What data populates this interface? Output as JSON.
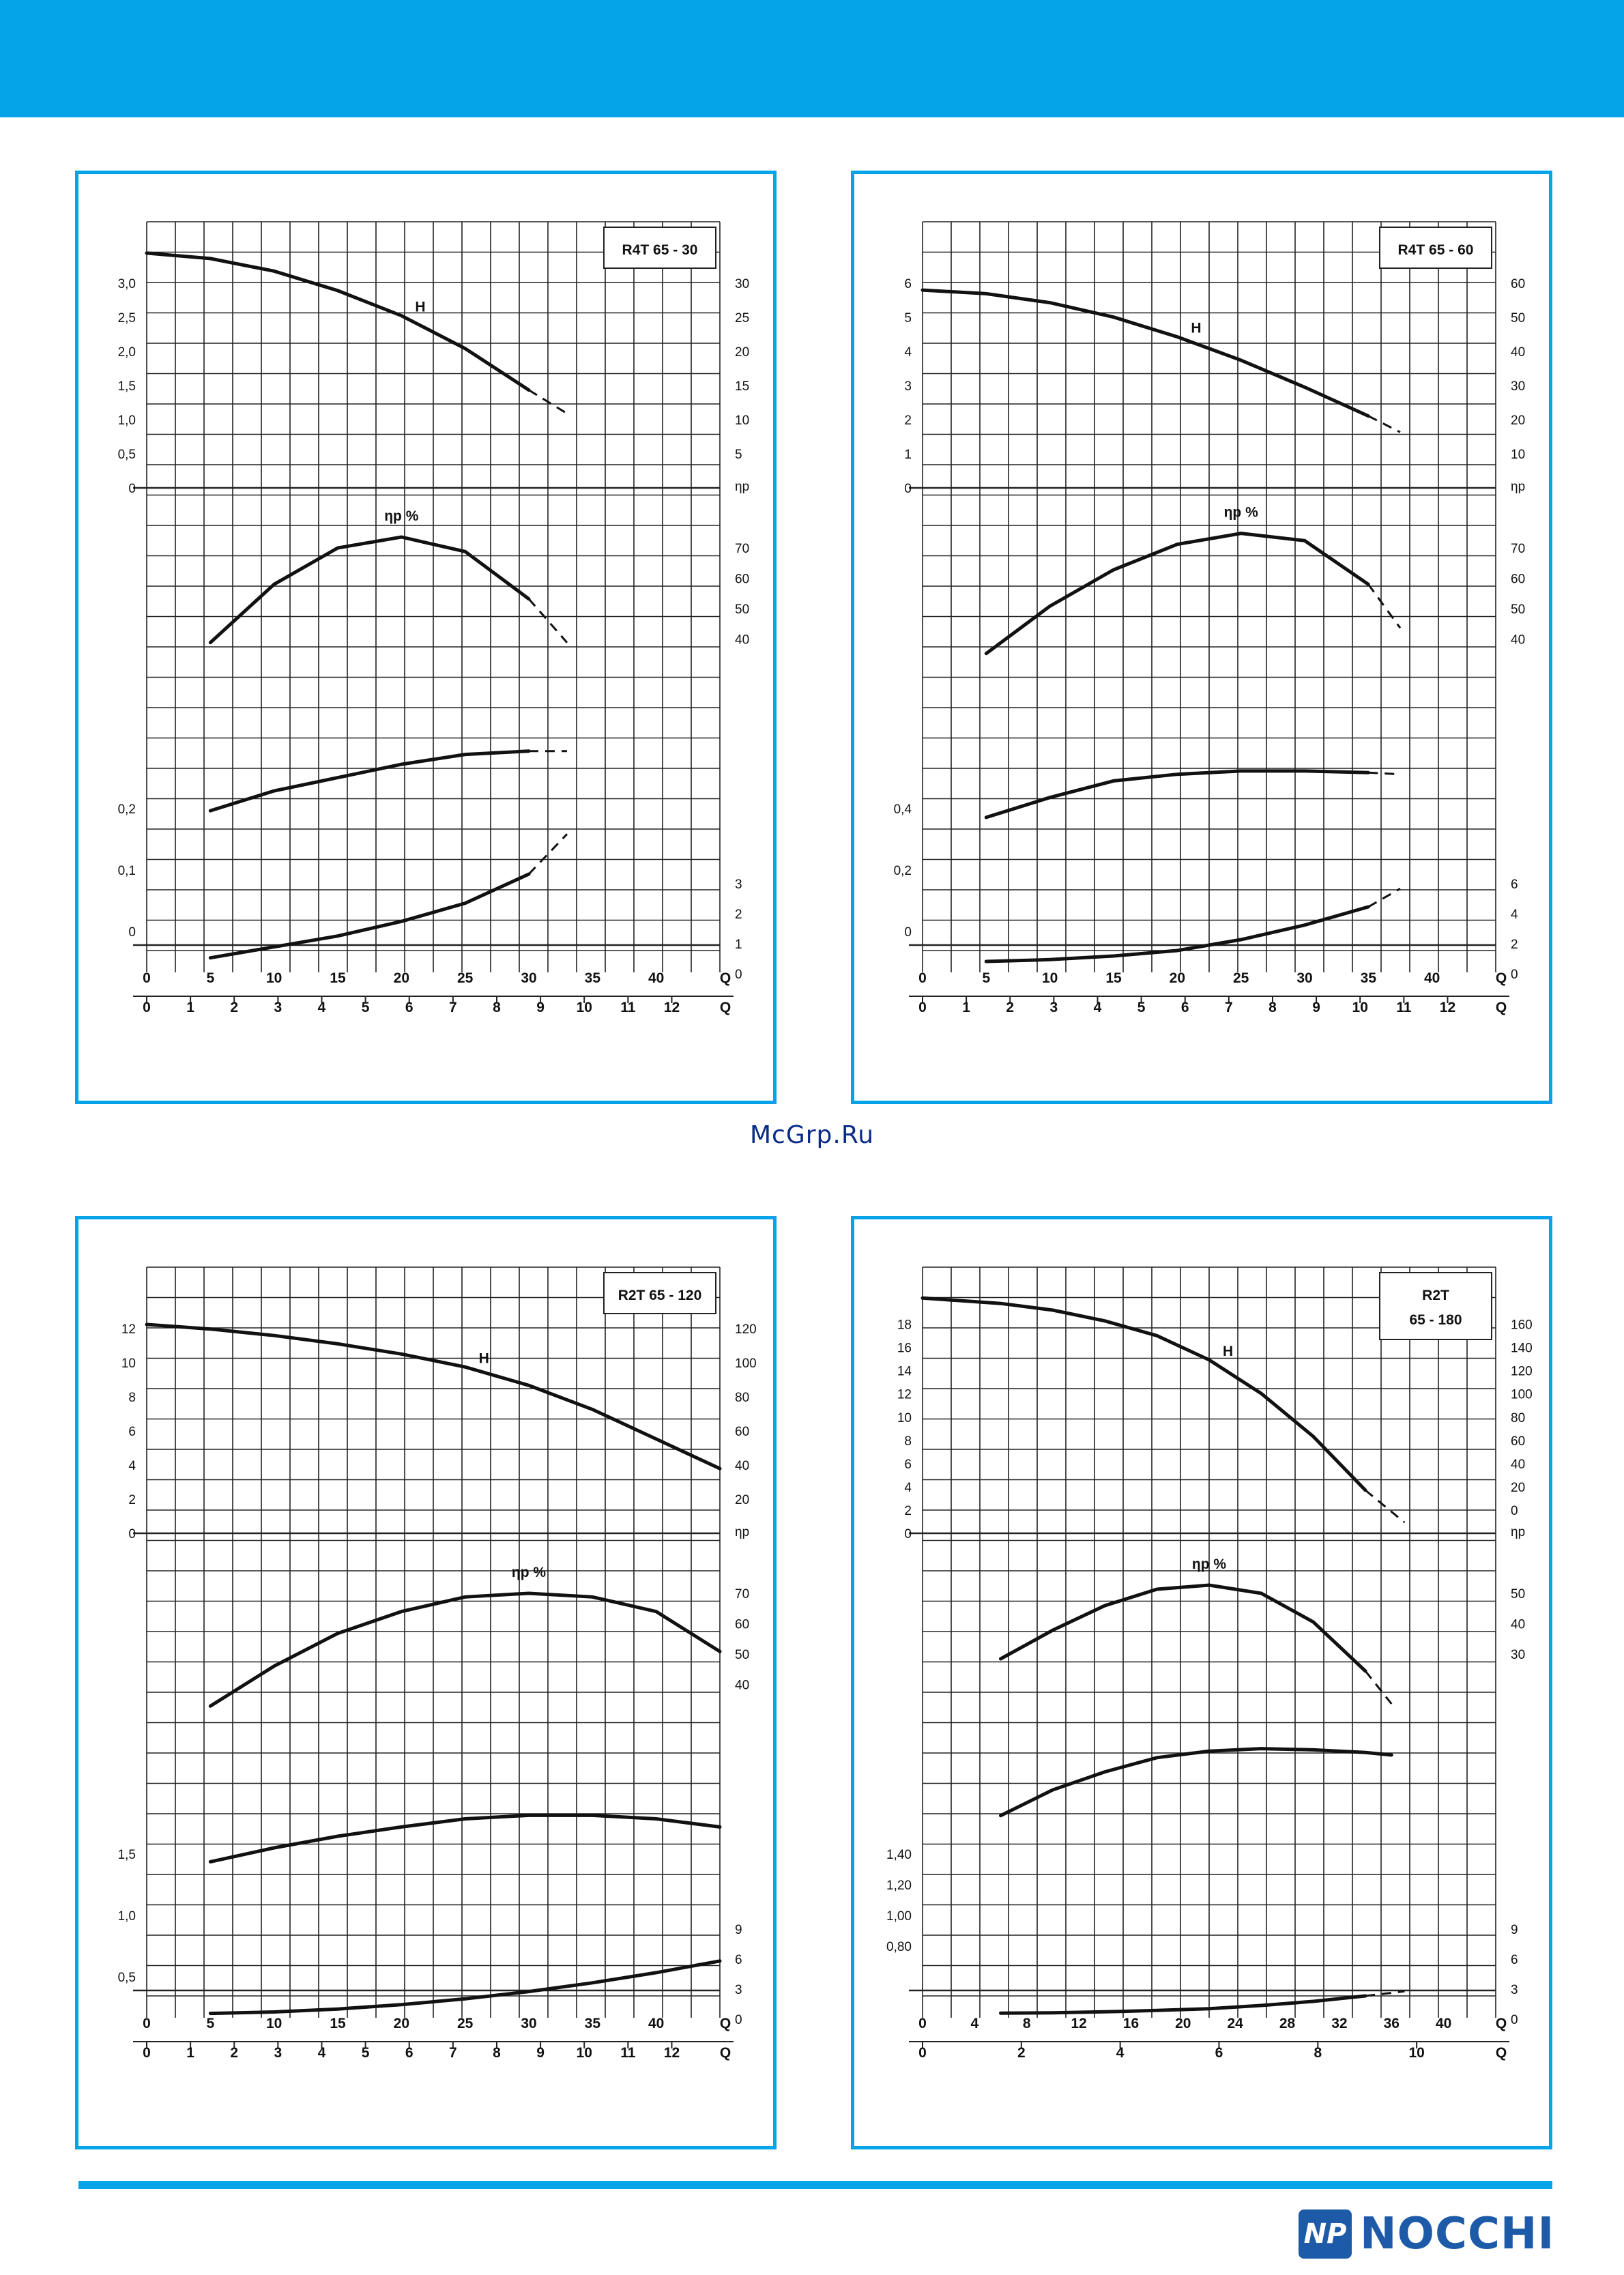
{
  "page": {
    "brand": "NOCCHI",
    "logo_mark": "NP",
    "watermark": "McGrp.Ru",
    "colors": {
      "accent": "#05a3e8",
      "logo_text": "#1d5aa8",
      "curve": "#111111",
      "grid": "#222222"
    }
  },
  "chart_data": [
    {
      "type": "line",
      "title": "R4T 65 - 30",
      "x_top": {
        "ticks": [
          0,
          5,
          10,
          15,
          20,
          25,
          30,
          35,
          40
        ],
        "label": "Q",
        "range": [
          0,
          45
        ]
      },
      "x_bottom": {
        "ticks": [
          0,
          1,
          2,
          3,
          4,
          5,
          6,
          7,
          8,
          9,
          10,
          11,
          12
        ],
        "label": "Q"
      },
      "H": {
        "left_ticks": [
          "3,0",
          "2,5",
          "2,0",
          "1,5",
          "1,0",
          "0,5",
          "0"
        ],
        "right_ticks": [
          "30",
          "25",
          "20",
          "15",
          "10",
          "5"
        ],
        "range": [
          0,
          3.4
        ],
        "label": "H",
        "x": [
          0,
          5,
          10,
          15,
          20,
          25,
          30,
          33
        ],
        "y": [
          3.0,
          2.93,
          2.77,
          2.52,
          2.2,
          1.78,
          1.25,
          0.95
        ],
        "dashed_from": 30
      },
      "eta": {
        "label": "ηp %",
        "right_ticks": [
          "70",
          "60",
          "50",
          "40"
        ],
        "range": [
          30,
          75
        ],
        "x": [
          5,
          10,
          15,
          20,
          25,
          30,
          33
        ],
        "y": [
          40,
          56,
          66,
          69,
          65,
          52,
          40
        ],
        "dashed_from": 30
      },
      "P": {
        "left_ticks": [
          "0,2",
          "0,1",
          "0"
        ],
        "range": [
          0,
          0.35
        ],
        "x": [
          5,
          10,
          15,
          20,
          25,
          30,
          33
        ],
        "y": [
          0.11,
          0.14,
          0.16,
          0.18,
          0.195,
          0.2,
          0.2
        ],
        "dashed_from": 30
      },
      "NPSH": {
        "right_ticks": [
          "3",
          "2",
          "1",
          "0"
        ],
        "range": [
          0,
          3
        ],
        "x": [
          5,
          10,
          15,
          20,
          25,
          30,
          33
        ],
        "y": [
          0.4,
          0.7,
          1.0,
          1.4,
          1.9,
          2.7,
          3.8
        ],
        "dashed_from": 30
      }
    },
    {
      "type": "line",
      "title": "R4T 65 - 60",
      "x_top": {
        "ticks": [
          0,
          5,
          10,
          15,
          20,
          25,
          30,
          35,
          40
        ],
        "label": "Q",
        "range": [
          0,
          45
        ]
      },
      "x_bottom": {
        "ticks": [
          0,
          1,
          2,
          3,
          4,
          5,
          6,
          7,
          8,
          9,
          10,
          11,
          12
        ],
        "label": "Q"
      },
      "H": {
        "left_ticks": [
          "6",
          "5",
          "4",
          "3",
          "2",
          "1",
          "0"
        ],
        "right_ticks": [
          "60",
          "50",
          "40",
          "30",
          "20",
          "10"
        ],
        "range": [
          0,
          7.4
        ],
        "label": "H",
        "x": [
          0,
          5,
          10,
          15,
          20,
          25,
          30,
          35,
          37.5
        ],
        "y": [
          5.5,
          5.4,
          5.15,
          4.75,
          4.2,
          3.55,
          2.8,
          2.0,
          1.55
        ],
        "dashed_from": 35
      },
      "eta": {
        "label": "ηp %",
        "right_ticks": [
          "70",
          "60",
          "50",
          "40"
        ],
        "range": [
          30,
          75
        ],
        "x": [
          5,
          10,
          15,
          20,
          25,
          30,
          35,
          37.5
        ],
        "y": [
          37,
          50,
          60,
          67,
          70,
          68,
          56,
          44
        ],
        "dashed_from": 35
      },
      "P": {
        "left_ticks": [
          "0,4",
          "0,2",
          "0"
        ],
        "range": [
          0,
          0.7
        ],
        "x": [
          5,
          10,
          15,
          20,
          25,
          30,
          35,
          37.5
        ],
        "y": [
          0.2,
          0.26,
          0.31,
          0.33,
          0.34,
          0.34,
          0.335,
          0.33
        ],
        "dashed_from": 35
      },
      "NPSH": {
        "right_ticks": [
          "6",
          "4",
          "2",
          "0"
        ],
        "range": [
          0,
          6
        ],
        "x": [
          5,
          10,
          15,
          20,
          25,
          30,
          35,
          37.5
        ],
        "y": [
          0.6,
          0.7,
          0.9,
          1.2,
          1.8,
          2.6,
          3.6,
          4.6
        ],
        "dashed_from": 35
      }
    },
    {
      "type": "line",
      "title": "R2T 65 - 120",
      "x_top": {
        "ticks": [
          0,
          5,
          10,
          15,
          20,
          25,
          30,
          35,
          40
        ],
        "label": "Q",
        "range": [
          0,
          45
        ]
      },
      "x_bottom": {
        "ticks": [
          0,
          1,
          2,
          3,
          4,
          5,
          6,
          7,
          8,
          9,
          10,
          11,
          12
        ],
        "label": "Q"
      },
      "H": {
        "left_ticks": [
          "12",
          "10",
          "8",
          "6",
          "4",
          "2",
          "0"
        ],
        "right_ticks": [
          "120",
          "100",
          "80",
          "60",
          "40",
          "20"
        ],
        "range": [
          0,
          14.4
        ],
        "label": "H",
        "x": [
          0,
          5,
          10,
          15,
          20,
          25,
          30,
          35,
          40,
          45
        ],
        "y": [
          11.3,
          11.05,
          10.7,
          10.25,
          9.7,
          9.0,
          8.0,
          6.7,
          5.1,
          3.5
        ],
        "dashed_from": 999,
        "dashed_to": 2
      },
      "eta": {
        "label": "ηp %",
        "right_ticks": [
          "70",
          "60",
          "50",
          "40"
        ],
        "range": [
          30,
          75
        ],
        "x": [
          5,
          10,
          15,
          20,
          25,
          30,
          35,
          40,
          45
        ],
        "y": [
          35,
          46,
          55,
          61,
          65,
          66,
          65,
          61,
          50
        ],
        "dashed_from": 999
      },
      "P": {
        "left_ticks": [
          "1,5",
          "1,0",
          "0,5"
        ],
        "range": [
          0,
          2
        ],
        "x": [
          5,
          10,
          15,
          20,
          25,
          30,
          35,
          40,
          45
        ],
        "y": [
          0.58,
          0.7,
          0.8,
          0.88,
          0.95,
          0.98,
          0.98,
          0.95,
          0.88
        ],
        "dashed_from": 999
      },
      "NPSH": {
        "right_ticks": [
          "9",
          "6",
          "3",
          "0"
        ],
        "range": [
          0,
          15
        ],
        "x": [
          5,
          10,
          15,
          20,
          25,
          30,
          35,
          40,
          45
        ],
        "y": [
          0.6,
          0.8,
          1.2,
          1.8,
          2.6,
          3.6,
          4.8,
          6.2,
          7.8
        ],
        "dashed_from": 999
      }
    },
    {
      "type": "line",
      "title": "R2T\n65 - 180",
      "x_top": {
        "ticks": [
          0,
          4,
          8,
          12,
          16,
          20,
          24,
          28,
          32,
          36,
          40
        ],
        "label": "Q",
        "range": [
          0,
          44
        ]
      },
      "x_bottom": {
        "ticks": [
          0,
          2,
          4,
          6,
          8,
          10
        ],
        "label": "Q"
      },
      "H": {
        "left_ticks": [
          "18",
          "16",
          "14",
          "12",
          "10",
          "8",
          "6",
          "4",
          "2",
          "0"
        ],
        "right_ticks": [
          "160",
          "140",
          "120",
          "100",
          "80",
          "60",
          "40",
          "20",
          "0"
        ],
        "range": [
          0,
          19.8
        ],
        "label": "H",
        "x": [
          0,
          6,
          10,
          14,
          18,
          22,
          26,
          30,
          34,
          37
        ],
        "y": [
          17.5,
          17.1,
          16.6,
          15.8,
          14.7,
          12.9,
          10.4,
          7.2,
          3.2,
          0.8
        ],
        "dashed_from": 34,
        "dashed_to": 6
      },
      "eta": {
        "label": "ηp %",
        "right_ticks": [
          "50",
          "40",
          "30"
        ],
        "range": [
          15,
          55
        ],
        "x": [
          6,
          10,
          14,
          18,
          22,
          26,
          30,
          34,
          36
        ],
        "y": [
          31,
          38,
          44,
          48,
          49,
          47,
          40,
          28,
          20
        ],
        "dashed_from": 34,
        "dashed_to": 8
      },
      "P": {
        "left_ticks": [
          "1,40",
          "1,20",
          "1,00",
          "0,80"
        ],
        "range": [
          0,
          1.8
        ],
        "x": [
          6,
          10,
          14,
          18,
          22,
          26,
          30,
          34,
          36
        ],
        "y": [
          0.88,
          1.08,
          1.22,
          1.33,
          1.38,
          1.4,
          1.39,
          1.37,
          1.35
        ],
        "dashed_from": 999,
        "dashed_to": 8
      },
      "NPSH": {
        "right_ticks": [
          "9",
          "6",
          "3",
          "0"
        ],
        "range": [
          0,
          12
        ],
        "x": [
          6,
          10,
          14,
          18,
          22,
          26,
          30,
          34,
          37
        ],
        "y": [
          0.5,
          0.55,
          0.65,
          0.8,
          1.0,
          1.35,
          1.8,
          2.4,
          2.9
        ],
        "dashed_from": 34,
        "dashed_to": 8
      }
    }
  ]
}
